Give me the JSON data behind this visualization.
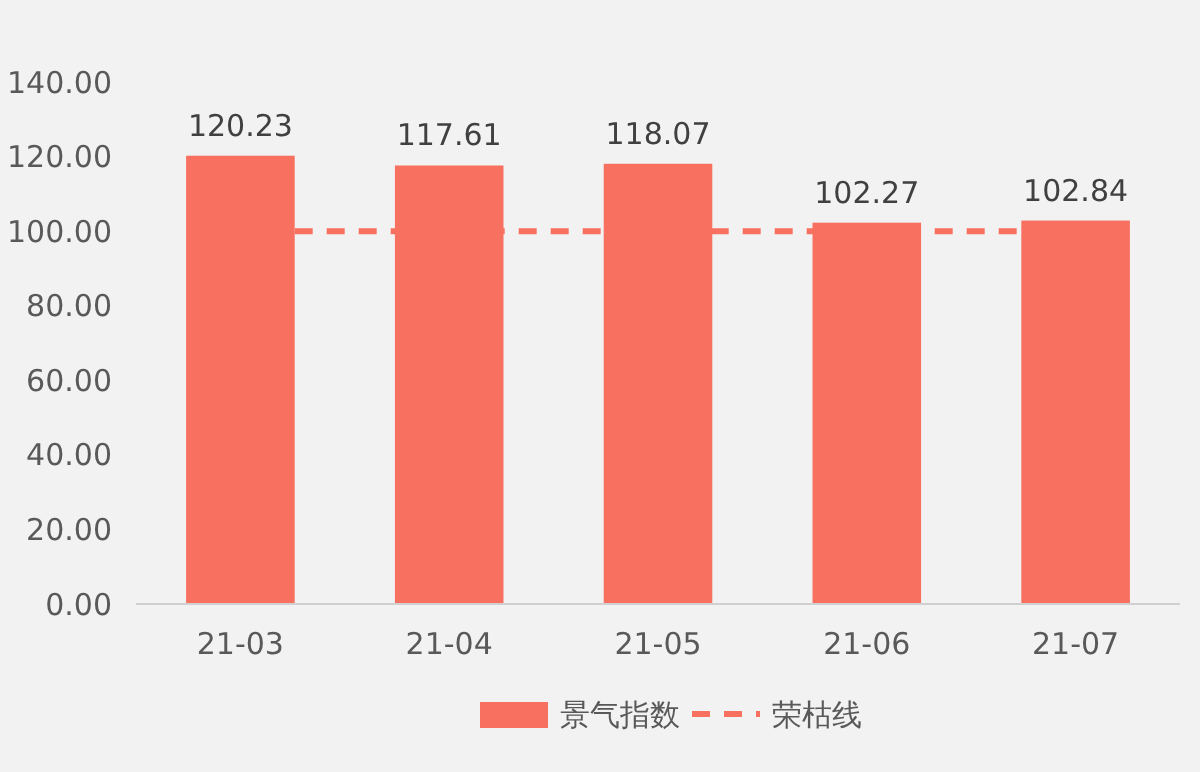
{
  "chart_data": {
    "type": "bar",
    "categories": [
      "21-03",
      "21-04",
      "21-05",
      "21-06",
      "21-07"
    ],
    "series": [
      {
        "name": "景气指数",
        "color": "#f8705f",
        "values": [
          120.23,
          117.61,
          118.07,
          102.27,
          102.84
        ]
      }
    ],
    "ref_lines": [
      {
        "axis": "y",
        "value": 100,
        "label": "荣枯线",
        "color": "#f8705f",
        "line_style": "dashed"
      }
    ],
    "ylim": [
      0,
      140
    ],
    "yticks": [
      {
        "value": 0,
        "label": "0.00"
      },
      {
        "value": 20,
        "label": "20.00"
      },
      {
        "value": 40,
        "label": "40.00"
      },
      {
        "value": 60,
        "label": "60.00"
      },
      {
        "value": 80,
        "label": "80.00"
      },
      {
        "value": 100,
        "label": "100.00"
      },
      {
        "value": 120,
        "label": "120.00"
      },
      {
        "value": 140,
        "label": "140.00"
      }
    ],
    "data_labels": true,
    "grid": false,
    "legend": "bottom"
  }
}
